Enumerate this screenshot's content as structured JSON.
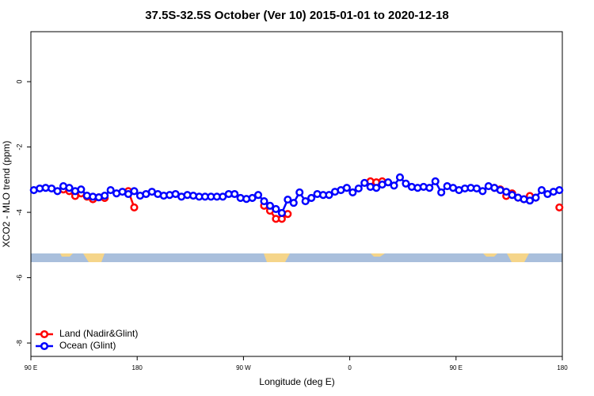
{
  "chart_data": {
    "type": "line",
    "title": "37.5S-32.5S October (Ver 10)   2015-01-01 to 2020-12-18",
    "x_label": "Longitude (deg E)",
    "y_label": "XCO2 - MLO trend (ppm)",
    "xlim": [
      90,
      540
    ],
    "xticks": [
      {
        "value": 90,
        "label": "90 E"
      },
      {
        "value": 180,
        "label": "180"
      },
      {
        "value": 270,
        "label": "90 W"
      },
      {
        "value": 360,
        "label": "0"
      },
      {
        "value": 450,
        "label": "90 E"
      },
      {
        "value": 540,
        "label": "180"
      }
    ],
    "ylim": [
      -8.41,
      1.53
    ],
    "yticks": [
      0,
      -2,
      -4,
      -6,
      -8
    ],
    "legend": "bottom-left",
    "x": [
      92.5,
      97.5,
      102.5,
      107.5,
      112.5,
      117.5,
      122.5,
      127.5,
      132.5,
      137.5,
      142.5,
      147.5,
      152.5,
      157.5,
      162.5,
      167.5,
      172.5,
      177.5,
      182.5,
      187.5,
      192.5,
      197.5,
      202.5,
      207.5,
      212.5,
      217.5,
      222.5,
      227.5,
      232.5,
      237.5,
      242.5,
      247.5,
      252.5,
      257.5,
      262.5,
      267.5,
      272.5,
      277.5,
      282.5,
      287.5,
      292.5,
      297.5,
      302.5,
      307.5,
      312.5,
      317.5,
      322.5,
      327.5,
      332.5,
      337.5,
      342.5,
      347.5,
      352.5,
      357.5,
      362.5,
      367.5,
      372.5,
      377.5,
      382.5,
      387.5,
      392.5,
      397.5,
      402.5,
      407.5,
      412.5,
      417.5,
      422.5,
      427.5,
      432.5,
      437.5,
      442.5,
      447.5,
      452.5,
      457.5,
      462.5,
      467.5,
      472.5,
      477.5,
      482.5,
      487.5,
      492.5,
      497.5,
      502.5,
      507.5,
      512.5,
      517.5,
      522.5,
      527.5,
      532.5,
      537.5
    ],
    "series": [
      {
        "name": "Land (Nadir&Glint)",
        "color": "#ff0000",
        "values": [
          null,
          null,
          null,
          null,
          null,
          -3.3,
          -3.35,
          -3.5,
          -3.42,
          -3.52,
          -3.6,
          -3.54,
          -3.56,
          null,
          null,
          null,
          -3.35,
          -3.85,
          null,
          null,
          null,
          null,
          null,
          null,
          null,
          null,
          null,
          null,
          null,
          null,
          null,
          null,
          null,
          null,
          null,
          null,
          null,
          null,
          null,
          -3.8,
          -3.95,
          -4.2,
          -4.2,
          -4.05,
          null,
          null,
          null,
          null,
          null,
          null,
          null,
          null,
          null,
          null,
          null,
          null,
          null,
          -3.05,
          -3.08,
          -3.05,
          null,
          null,
          null,
          null,
          null,
          null,
          null,
          null,
          null,
          null,
          null,
          null,
          null,
          null,
          null,
          null,
          null,
          null,
          -3.25,
          -3.3,
          -3.5,
          -3.42,
          -3.55,
          -3.6,
          -3.5,
          -3.55,
          null,
          null,
          null,
          -3.85
        ]
      },
      {
        "name": "Ocean (Glint)",
        "color": "#0000ff",
        "values": [
          -3.32,
          -3.27,
          -3.25,
          -3.27,
          -3.35,
          -3.2,
          -3.25,
          -3.35,
          -3.3,
          -3.49,
          -3.52,
          -3.54,
          -3.49,
          -3.32,
          -3.42,
          -3.37,
          -3.44,
          -3.35,
          -3.49,
          -3.44,
          -3.37,
          -3.44,
          -3.49,
          -3.47,
          -3.44,
          -3.52,
          -3.47,
          -3.49,
          -3.52,
          -3.52,
          -3.52,
          -3.52,
          -3.52,
          -3.44,
          -3.44,
          -3.56,
          -3.59,
          -3.56,
          -3.47,
          -3.66,
          -3.8,
          -3.9,
          -4.02,
          -3.61,
          -3.71,
          -3.39,
          -3.66,
          -3.56,
          -3.44,
          -3.47,
          -3.47,
          -3.37,
          -3.32,
          -3.25,
          -3.39,
          -3.27,
          -3.1,
          -3.22,
          -3.25,
          -3.15,
          -3.08,
          -3.18,
          -2.93,
          -3.12,
          -3.22,
          -3.25,
          -3.22,
          -3.25,
          -3.05,
          -3.39,
          -3.2,
          -3.25,
          -3.32,
          -3.27,
          -3.25,
          -3.27,
          -3.35,
          -3.2,
          -3.25,
          -3.32,
          -3.37,
          -3.47,
          -3.55,
          -3.6,
          -3.64,
          -3.55,
          -3.32,
          -3.44,
          -3.37,
          -3.32
        ]
      }
    ]
  }
}
